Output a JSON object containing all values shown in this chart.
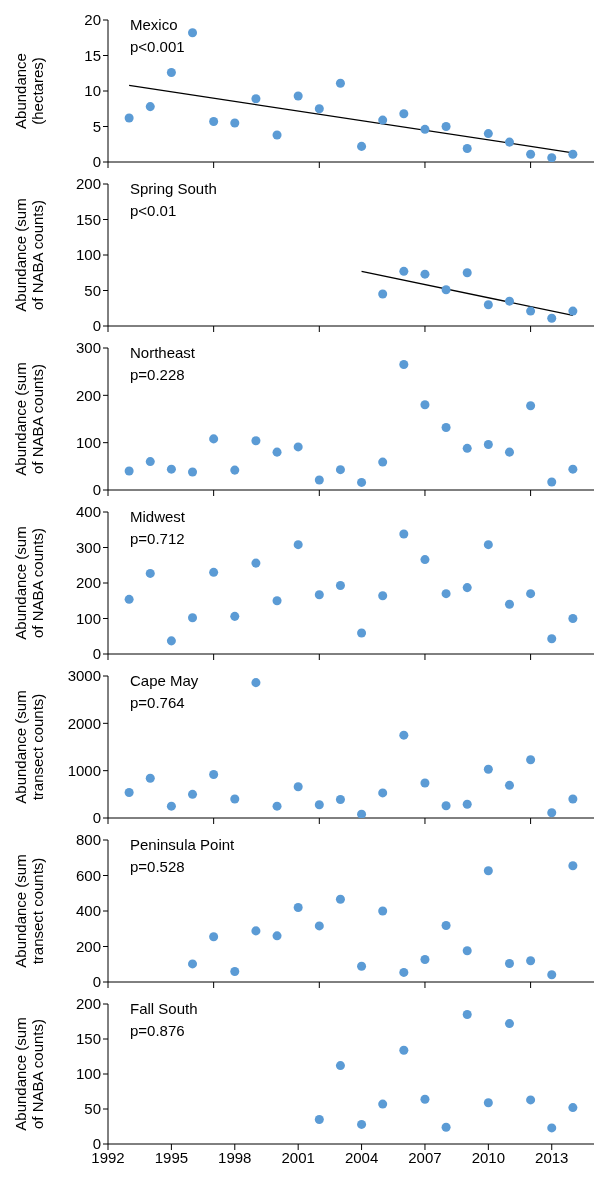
{
  "chart_data": [
    {
      "type": "scatter",
      "title": "Mexico",
      "annotations": [
        "p<0.001"
      ],
      "ylabel": "Abundance (hectares)",
      "marker": "circle",
      "tick_labels": "y",
      "xlim": [
        1992,
        2015
      ],
      "xticks": [
        {
          "value": 1992,
          "label": null
        },
        {
          "value": 1997,
          "label": null
        },
        {
          "value": 2002,
          "label": null
        },
        {
          "value": 2007,
          "label": null
        },
        {
          "value": 2012,
          "label": null
        }
      ],
      "ylim": [
        0,
        20
      ],
      "yticks": [
        0,
        5,
        10,
        15,
        20
      ],
      "x": [
        1993,
        1994,
        1995,
        1996,
        1997,
        1998,
        1999,
        2000,
        2001,
        2002,
        2003,
        2004,
        2005,
        2006,
        2007,
        2008,
        2009,
        2010,
        2011,
        2012,
        2013,
        2014
      ],
      "series": [
        {
          "color": "#5b9bd5",
          "values": [
            6.2,
            7.8,
            12.6,
            18.2,
            5.7,
            5.5,
            8.9,
            3.8,
            9.3,
            7.5,
            11.1,
            2.2,
            5.9,
            6.8,
            4.6,
            5.0,
            1.9,
            4.0,
            2.8,
            1.1,
            0.6,
            1.1
          ]
        },
        {
          "type": "line",
          "marker": "none",
          "color": "#000000",
          "x": [
            1993,
            2014
          ],
          "values": [
            10.8,
            1.3
          ]
        }
      ]
    },
    {
      "type": "scatter",
      "title": "Spring South",
      "annotations": [
        "p<0.01"
      ],
      "ylabel": "Abundance (sum of NABA counts)",
      "marker": "circle",
      "tick_labels": "y",
      "xlim": [
        1992,
        2015
      ],
      "xticks": [
        {
          "value": 1992,
          "label": null
        },
        {
          "value": 1997,
          "label": null
        },
        {
          "value": 2002,
          "label": null
        },
        {
          "value": 2007,
          "label": null
        },
        {
          "value": 2012,
          "label": null
        }
      ],
      "ylim": [
        0,
        200
      ],
      "yticks": [
        0,
        50,
        100,
        150,
        200
      ],
      "x": [
        2005,
        2006,
        2007,
        2008,
        2009,
        2010,
        2011,
        2012,
        2013,
        2014
      ],
      "series": [
        {
          "color": "#5b9bd5",
          "values": [
            45,
            77,
            73,
            51,
            75,
            30,
            35,
            21,
            11,
            21
          ]
        },
        {
          "type": "line",
          "marker": "none",
          "color": "#000000",
          "x": [
            2004,
            2014
          ],
          "values": [
            77,
            15
          ]
        }
      ]
    },
    {
      "type": "scatter",
      "title": "Northeast",
      "annotations": [
        "p=0.228"
      ],
      "ylabel": "Abundance (sum of NABA counts)",
      "marker": "circle",
      "tick_labels": "y",
      "xlim": [
        1992,
        2015
      ],
      "xticks": [
        {
          "value": 1992,
          "label": null
        },
        {
          "value": 1997,
          "label": null
        },
        {
          "value": 2002,
          "label": null
        },
        {
          "value": 2007,
          "label": null
        },
        {
          "value": 2012,
          "label": null
        }
      ],
      "ylim": [
        0,
        300
      ],
      "yticks": [
        0,
        100,
        200,
        300
      ],
      "x": [
        1993,
        1994,
        1995,
        1996,
        1997,
        1998,
        1999,
        2000,
        2001,
        2002,
        2003,
        2004,
        2005,
        2006,
        2007,
        2008,
        2009,
        2010,
        2011,
        2012,
        2013,
        2014
      ],
      "series": [
        {
          "color": "#5b9bd5",
          "values": [
            40,
            60,
            44,
            38,
            108,
            42,
            104,
            80,
            91,
            21,
            43,
            16,
            59,
            265,
            180,
            132,
            88,
            96,
            80,
            178,
            17,
            44
          ]
        }
      ]
    },
    {
      "type": "scatter",
      "title": "Midwest",
      "annotations": [
        "p=0.712"
      ],
      "ylabel": "Abundance (sum of NABA counts)",
      "marker": "circle",
      "tick_labels": "y",
      "xlim": [
        1992,
        2015
      ],
      "xticks": [
        {
          "value": 1992,
          "label": null
        },
        {
          "value": 1997,
          "label": null
        },
        {
          "value": 2002,
          "label": null
        },
        {
          "value": 2007,
          "label": null
        },
        {
          "value": 2012,
          "label": null
        }
      ],
      "ylim": [
        0,
        400
      ],
      "yticks": [
        0,
        100,
        200,
        300,
        400
      ],
      "x": [
        1993,
        1994,
        1995,
        1996,
        1997,
        1998,
        1999,
        2000,
        2001,
        2002,
        2003,
        2004,
        2005,
        2006,
        2007,
        2008,
        2009,
        2010,
        2011,
        2012,
        2013,
        2014
      ],
      "series": [
        {
          "color": "#5b9bd5",
          "values": [
            154,
            227,
            37,
            102,
            230,
            106,
            256,
            150,
            308,
            167,
            193,
            59,
            164,
            338,
            266,
            170,
            187,
            308,
            140,
            170,
            43,
            100
          ]
        }
      ]
    },
    {
      "type": "scatter",
      "title": "Cape May",
      "annotations": [
        "p=0.764"
      ],
      "ylabel": "Abundance (sum transect counts)",
      "marker": "circle",
      "tick_labels": "y",
      "xlim": [
        1992,
        2015
      ],
      "xticks": [
        {
          "value": 1992,
          "label": null
        },
        {
          "value": 1997,
          "label": null
        },
        {
          "value": 2002,
          "label": null
        },
        {
          "value": 2007,
          "label": null
        },
        {
          "value": 2012,
          "label": null
        }
      ],
      "ylim": [
        0,
        3000
      ],
      "yticks": [
        0,
        1000,
        2000,
        3000
      ],
      "x": [
        1993,
        1994,
        1995,
        1996,
        1997,
        1998,
        1999,
        2000,
        2001,
        2002,
        2003,
        2004,
        2005,
        2006,
        2007,
        2008,
        2009,
        2010,
        2011,
        2012,
        2013,
        2014
      ],
      "series": [
        {
          "color": "#5b9bd5",
          "values": [
            540,
            840,
            250,
            500,
            920,
            400,
            2860,
            250,
            660,
            280,
            390,
            80,
            530,
            1750,
            740,
            260,
            290,
            1030,
            690,
            1230,
            110,
            400
          ]
        }
      ]
    },
    {
      "type": "scatter",
      "title": "Peninsula Point",
      "annotations": [
        "p=0.528"
      ],
      "ylabel": "Abundance (sum transect counts)",
      "marker": "circle",
      "tick_labels": "y",
      "xlim": [
        1992,
        2015
      ],
      "xticks": [
        {
          "value": 1992,
          "label": null
        },
        {
          "value": 1997,
          "label": null
        },
        {
          "value": 2002,
          "label": null
        },
        {
          "value": 2007,
          "label": null
        },
        {
          "value": 2012,
          "label": null
        }
      ],
      "ylim": [
        0,
        800
      ],
      "yticks": [
        0,
        200,
        400,
        600,
        800
      ],
      "x": [
        1996,
        1997,
        1998,
        1999,
        2000,
        2001,
        2002,
        2003,
        2004,
        2005,
        2006,
        2007,
        2008,
        2009,
        2010,
        2011,
        2012,
        2013,
        2014
      ],
      "series": [
        {
          "color": "#5b9bd5",
          "values": [
            102,
            255,
            59,
            288,
            260,
            420,
            316,
            466,
            89,
            400,
            54,
            127,
            318,
            176,
            627,
            104,
            120,
            41,
            655
          ]
        }
      ]
    },
    {
      "type": "scatter",
      "title": "Fall South",
      "annotations": [
        "p=0.876"
      ],
      "ylabel": "Abundance (sum of NABA counts)",
      "marker": "circle",
      "xlim": [
        1992,
        2015
      ],
      "xticks": [
        1992,
        1995,
        1998,
        2001,
        2004,
        2007,
        2010,
        2013
      ],
      "ylim": [
        0,
        200
      ],
      "yticks": [
        0,
        50,
        100,
        150,
        200
      ],
      "x": [
        2002,
        2003,
        2004,
        2005,
        2006,
        2007,
        2008,
        2009,
        2010,
        2011,
        2012,
        2013,
        2014
      ],
      "series": [
        {
          "color": "#5b9bd5",
          "values": [
            35,
            112,
            28,
            57,
            134,
            64,
            24,
            185,
            59,
            172,
            63,
            23,
            52
          ]
        }
      ]
    }
  ]
}
